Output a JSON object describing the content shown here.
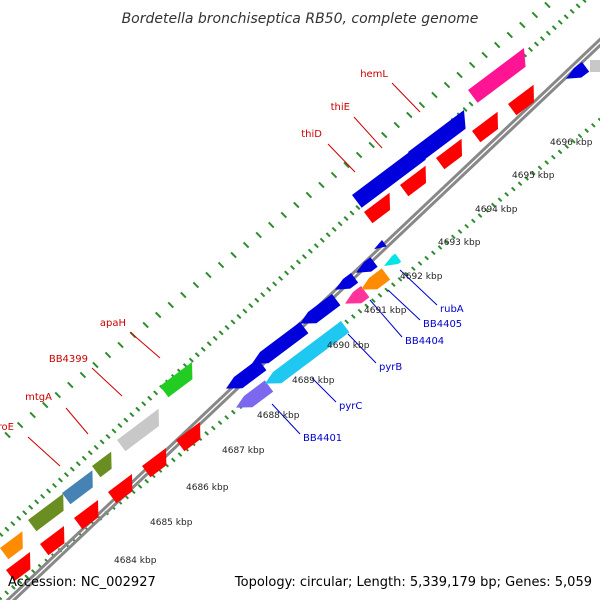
{
  "title": "Bordetella bronchiseptica RB50, complete genome",
  "footer": {
    "accession": "Accession: NC_002927",
    "topology": "Topology: circular; Length: 5,339,179 bp; Genes: 5,059"
  },
  "colors": {
    "forward_label": "#cc0000",
    "reverse_label": "#0000cc",
    "backbone": "#888888",
    "tick": "#2e8b2e",
    "red_gene": "#ff0000",
    "blue_gene": "#0000dd"
  },
  "kbp_labels": [
    "4684 kbp",
    "4685 kbp",
    "4686 kbp",
    "4687 kbp",
    "4688 kbp",
    "4689 kbp",
    "4690 kbp",
    "4691 kbp",
    "4692 kbp",
    "4693 kbp",
    "4694 kbp",
    "4695 kbp",
    "4696 kbp"
  ],
  "forward_gene_labels": [
    "aroE",
    "mtgA",
    "BB4399",
    "apaH",
    "thiD",
    "thiE",
    "hemL"
  ],
  "reverse_gene_labels": [
    "BB4401",
    "pyrC",
    "pyrB",
    "BB4404",
    "BB4405",
    "rubA"
  ]
}
